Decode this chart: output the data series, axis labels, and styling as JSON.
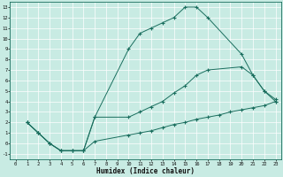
{
  "bg_color": "#c8ebe3",
  "line_color": "#1a6e5e",
  "xlabel": "Humidex (Indice chaleur)",
  "xlim": [
    -0.5,
    23.5
  ],
  "ylim": [
    -1.5,
    13.5
  ],
  "xticks": [
    0,
    1,
    2,
    3,
    4,
    5,
    6,
    7,
    8,
    9,
    10,
    11,
    12,
    13,
    14,
    15,
    16,
    17,
    18,
    19,
    20,
    21,
    22,
    23
  ],
  "yticks": [
    -1,
    0,
    1,
    2,
    3,
    4,
    5,
    6,
    7,
    8,
    9,
    10,
    11,
    12,
    13
  ],
  "curve1_x": [
    1,
    2,
    3,
    4,
    5,
    6,
    7,
    10,
    11,
    12,
    13,
    14,
    15,
    16,
    17,
    20,
    21,
    22,
    23
  ],
  "curve1_y": [
    2.0,
    1.0,
    0.0,
    -0.7,
    -0.7,
    -0.7,
    2.5,
    9.0,
    10.5,
    11.0,
    11.5,
    12.0,
    13.0,
    13.0,
    12.0,
    8.5,
    6.5,
    5.0,
    4.0
  ],
  "curve2_x": [
    1,
    2,
    3,
    4,
    5,
    6,
    7,
    10,
    11,
    12,
    13,
    14,
    15,
    16,
    17,
    20,
    21,
    22,
    23
  ],
  "curve2_y": [
    2.0,
    1.0,
    0.0,
    -0.7,
    -0.7,
    -0.7,
    2.5,
    2.5,
    3.0,
    3.5,
    4.0,
    4.8,
    5.5,
    6.5,
    7.0,
    7.3,
    6.5,
    5.0,
    4.2
  ],
  "curve3_x": [
    1,
    2,
    3,
    4,
    5,
    6,
    7,
    10,
    11,
    12,
    13,
    14,
    15,
    16,
    17,
    18,
    19,
    20,
    21,
    22,
    23
  ],
  "curve3_y": [
    2.0,
    1.0,
    0.0,
    -0.7,
    -0.7,
    -0.7,
    0.2,
    0.8,
    1.0,
    1.2,
    1.5,
    1.8,
    2.0,
    2.3,
    2.5,
    2.7,
    3.0,
    3.2,
    3.4,
    3.6,
    4.0
  ]
}
